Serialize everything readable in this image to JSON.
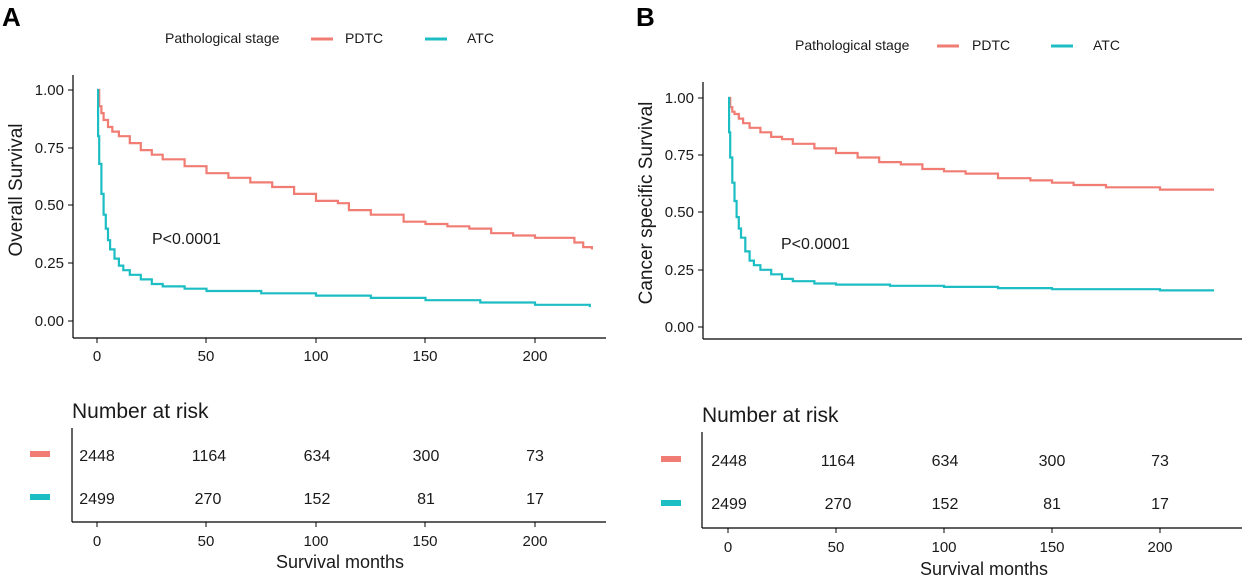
{
  "colors": {
    "pdtc": "#F07C73",
    "atc": "#1DBDC4",
    "axis": "#000000",
    "text": "#1a1a1a"
  },
  "chart_data": [
    {
      "type": "line",
      "panel_label": "A",
      "title": "",
      "legend_title": "Pathological stage",
      "xlabel": "Survival months",
      "ylabel": "Overall Survival",
      "xlim": [
        -10,
        230
      ],
      "ylim": [
        0,
        1
      ],
      "x_ticks": [
        "0",
        "50",
        "100",
        "150",
        "200"
      ],
      "y_ticks": [
        "0.00",
        "0.25",
        "0.50",
        "0.75",
        "1.00"
      ],
      "p_value": "P<0.0001",
      "series": [
        {
          "name": "PDTC",
          "x": [
            0,
            1,
            2,
            3,
            5,
            7,
            10,
            15,
            20,
            25,
            30,
            40,
            50,
            60,
            70,
            80,
            90,
            100,
            110,
            115,
            125,
            140,
            150,
            160,
            170,
            180,
            190,
            200,
            210,
            215,
            218,
            222,
            226
          ],
          "y": [
            1.0,
            0.93,
            0.9,
            0.87,
            0.84,
            0.82,
            0.8,
            0.77,
            0.74,
            0.72,
            0.7,
            0.67,
            0.64,
            0.62,
            0.6,
            0.58,
            0.55,
            0.52,
            0.51,
            0.48,
            0.46,
            0.43,
            0.42,
            0.41,
            0.4,
            0.38,
            0.37,
            0.36,
            0.36,
            0.36,
            0.34,
            0.32,
            0.31
          ]
        },
        {
          "name": "ATC",
          "x": [
            0,
            0.5,
            1,
            2,
            3,
            4,
            5,
            6,
            8,
            10,
            12,
            15,
            20,
            25,
            30,
            40,
            50,
            75,
            100,
            125,
            150,
            175,
            200,
            225
          ],
          "y": [
            1.0,
            0.8,
            0.68,
            0.55,
            0.46,
            0.4,
            0.35,
            0.31,
            0.27,
            0.24,
            0.22,
            0.2,
            0.18,
            0.16,
            0.15,
            0.14,
            0.13,
            0.12,
            0.11,
            0.1,
            0.09,
            0.08,
            0.07,
            0.06
          ]
        }
      ]
    },
    {
      "type": "line",
      "panel_label": "B",
      "title": "",
      "legend_title": "Pathological stage",
      "xlabel": "Survival months",
      "ylabel": "Cancer specific Survival",
      "xlim": [
        -10,
        240
      ],
      "ylim": [
        0,
        1
      ],
      "x_ticks": [
        "0",
        "50",
        "100",
        "150",
        "200"
      ],
      "y_ticks": [
        "0.00",
        "0.25",
        "0.50",
        "0.75",
        "1.00"
      ],
      "p_value": "P<0.0001",
      "series": [
        {
          "name": "PDTC",
          "x": [
            0,
            1,
            2,
            3,
            5,
            7,
            10,
            15,
            20,
            25,
            30,
            40,
            50,
            60,
            70,
            80,
            90,
            100,
            110,
            125,
            140,
            150,
            160,
            175,
            190,
            200,
            215,
            225
          ],
          "y": [
            1.0,
            0.96,
            0.94,
            0.93,
            0.91,
            0.89,
            0.87,
            0.85,
            0.83,
            0.82,
            0.8,
            0.78,
            0.76,
            0.74,
            0.72,
            0.71,
            0.69,
            0.68,
            0.67,
            0.65,
            0.64,
            0.63,
            0.62,
            0.61,
            0.61,
            0.6,
            0.6,
            0.6
          ]
        },
        {
          "name": "ATC",
          "x": [
            0,
            0.5,
            1,
            2,
            3,
            4,
            5,
            6,
            8,
            10,
            12,
            15,
            20,
            25,
            30,
            40,
            50,
            75,
            100,
            125,
            150,
            175,
            200,
            225
          ],
          "y": [
            1.0,
            0.85,
            0.74,
            0.63,
            0.55,
            0.48,
            0.43,
            0.39,
            0.33,
            0.29,
            0.27,
            0.25,
            0.23,
            0.21,
            0.2,
            0.19,
            0.185,
            0.18,
            0.175,
            0.17,
            0.165,
            0.165,
            0.16,
            0.16
          ]
        }
      ]
    }
  ],
  "panels": [
    {
      "label": "A",
      "legend": {
        "title": "Pathological stage",
        "items": [
          {
            "key": "pdtc",
            "label": "PDTC"
          },
          {
            "key": "atc",
            "label": "ATC"
          }
        ]
      },
      "p_value": "P<0.0001",
      "risk_table": {
        "title": "Number at risk",
        "rows": [
          {
            "key": "pdtc",
            "values": [
              "2448",
              "1164",
              "634",
              "300",
              "73"
            ]
          },
          {
            "key": "atc",
            "values": [
              "2499",
              "270",
              "152",
              "81",
              "17"
            ]
          }
        ],
        "x_ticks": [
          "0",
          "50",
          "100",
          "150",
          "200"
        ],
        "xlabel": "Survival months"
      }
    },
    {
      "label": "B",
      "legend": {
        "title": "Pathological stage",
        "items": [
          {
            "key": "pdtc",
            "label": "PDTC"
          },
          {
            "key": "atc",
            "label": "ATC"
          }
        ]
      },
      "p_value": "P<0.0001",
      "risk_table": {
        "title": "Number at risk",
        "rows": [
          {
            "key": "pdtc",
            "values": [
              "2448",
              "1164",
              "634",
              "300",
              "73"
            ]
          },
          {
            "key": "atc",
            "values": [
              "2499",
              "270",
              "152",
              "81",
              "17"
            ]
          }
        ],
        "x_ticks": [
          "0",
          "50",
          "100",
          "150",
          "200"
        ],
        "xlabel": "Survival months"
      }
    }
  ]
}
